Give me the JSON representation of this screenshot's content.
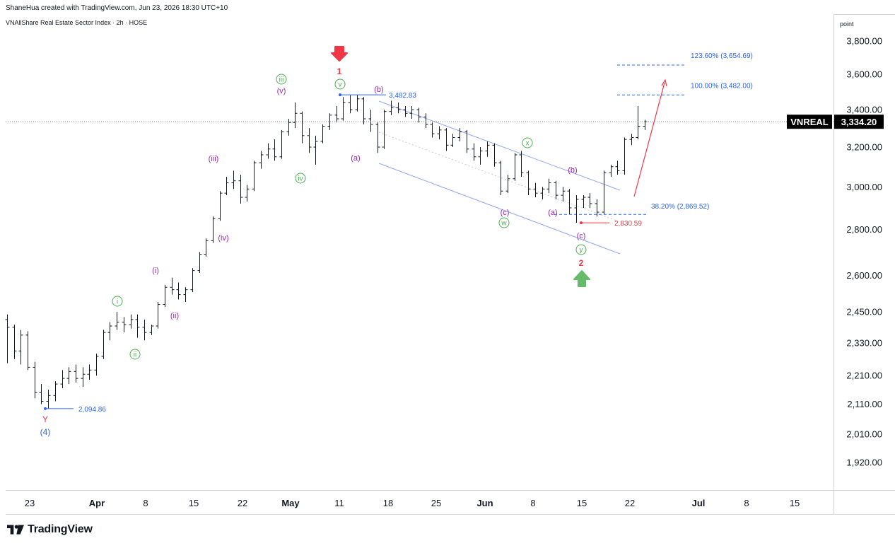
{
  "header": {
    "credit": "ShaneHua created with TradingView.com, Jun 23, 2026 18:30 UTC+10",
    "symbol_line": "VNAllShare Real Estate Sector Index · 2h · HOSE"
  },
  "price_axis": {
    "unit": "point",
    "ticks": [
      "3,800.00",
      "3,600.00",
      "3,400.00",
      "3,200.00",
      "3,000.00",
      "2,800.00",
      "2,600.00",
      "2,450.00",
      "2,330.00",
      "2,210.00",
      "2,110.00",
      "2,010.00",
      "1,920.00"
    ],
    "tick_values": [
      3800,
      3600,
      3400,
      3200,
      3000,
      2800,
      2600,
      2450,
      2330,
      2210,
      2110,
      2010,
      1920
    ]
  },
  "time_axis": {
    "ticks": [
      "23",
      "Apr",
      "8",
      "15",
      "22",
      "May",
      "11",
      "18",
      "25",
      "Jun",
      "8",
      "15",
      "22",
      "Jul",
      "8",
      "15"
    ],
    "bold": [
      "Apr",
      "May",
      "Jun",
      "Jul"
    ]
  },
  "last_price": {
    "symbol": "VNREAL",
    "value": "3,334.20",
    "price": 3334.2
  },
  "chart_data": {
    "type": "bar",
    "title": "VNAllShare Real Estate Sector Index",
    "scale": "log",
    "ylim": [
      1850,
      3900
    ],
    "x_range": [
      "Mar 20",
      "Jul 20"
    ],
    "grid": false,
    "ohlc_note": "2h OHLC bars, approximate",
    "ohlc": [
      [
        2420,
        2440,
        2255,
        2390
      ],
      [
        2390,
        2400,
        2270,
        2300
      ],
      [
        2300,
        2380,
        2250,
        2360
      ],
      [
        2360,
        2375,
        2230,
        2240
      ],
      [
        2240,
        2260,
        2130,
        2150
      ],
      [
        2150,
        2180,
        2110,
        2120
      ],
      [
        2120,
        2160,
        2095,
        2140
      ],
      [
        2140,
        2190,
        2120,
        2180
      ],
      [
        2180,
        2230,
        2165,
        2200
      ],
      [
        2200,
        2240,
        2180,
        2225
      ],
      [
        2225,
        2250,
        2185,
        2200
      ],
      [
        2200,
        2240,
        2170,
        2215
      ],
      [
        2215,
        2250,
        2195,
        2230
      ],
      [
        2230,
        2290,
        2210,
        2280
      ],
      [
        2280,
        2380,
        2270,
        2370
      ],
      [
        2370,
        2410,
        2340,
        2395
      ],
      [
        2395,
        2450,
        2380,
        2410
      ],
      [
        2410,
        2430,
        2370,
        2400
      ],
      [
        2400,
        2440,
        2385,
        2420
      ],
      [
        2420,
        2440,
        2350,
        2390
      ],
      [
        2390,
        2420,
        2340,
        2370
      ],
      [
        2370,
        2400,
        2360,
        2395
      ],
      [
        2395,
        2490,
        2385,
        2480
      ],
      [
        2480,
        2560,
        2470,
        2550
      ],
      [
        2550,
        2590,
        2520,
        2540
      ],
      [
        2540,
        2570,
        2500,
        2520
      ],
      [
        2520,
        2550,
        2490,
        2540
      ],
      [
        2540,
        2630,
        2530,
        2620
      ],
      [
        2620,
        2700,
        2610,
        2690
      ],
      [
        2690,
        2760,
        2680,
        2750
      ],
      [
        2750,
        2860,
        2740,
        2850
      ],
      [
        2850,
        2980,
        2840,
        2970
      ],
      [
        2970,
        3050,
        2960,
        3020
      ],
      [
        3020,
        3080,
        2990,
        3030
      ],
      [
        3030,
        3060,
        2920,
        2950
      ],
      [
        2950,
        3010,
        2930,
        2990
      ],
      [
        2990,
        3130,
        2980,
        3120
      ],
      [
        3120,
        3180,
        3090,
        3160
      ],
      [
        3160,
        3220,
        3140,
        3190
      ],
      [
        3190,
        3240,
        3130,
        3150
      ],
      [
        3150,
        3290,
        3140,
        3280
      ],
      [
        3280,
        3350,
        3260,
        3330
      ],
      [
        3330,
        3440,
        3300,
        3380
      ],
      [
        3380,
        3390,
        3220,
        3260
      ],
      [
        3260,
        3300,
        3170,
        3200
      ],
      [
        3200,
        3260,
        3110,
        3230
      ],
      [
        3230,
        3320,
        3220,
        3310
      ],
      [
        3310,
        3380,
        3290,
        3370
      ],
      [
        3370,
        3420,
        3330,
        3350
      ],
      [
        3350,
        3470,
        3340,
        3440
      ],
      [
        3440,
        3480,
        3380,
        3400
      ],
      [
        3400,
        3483,
        3390,
        3460
      ],
      [
        3460,
        3470,
        3320,
        3350
      ],
      [
        3350,
        3400,
        3280,
        3320
      ],
      [
        3320,
        3330,
        3170,
        3200
      ],
      [
        3200,
        3400,
        3190,
        3390
      ],
      [
        3390,
        3450,
        3370,
        3410
      ],
      [
        3410,
        3440,
        3380,
        3400
      ],
      [
        3400,
        3420,
        3360,
        3380
      ],
      [
        3380,
        3420,
        3350,
        3400
      ],
      [
        3400,
        3410,
        3330,
        3360
      ],
      [
        3360,
        3380,
        3300,
        3320
      ],
      [
        3320,
        3330,
        3250,
        3270
      ],
      [
        3270,
        3310,
        3240,
        3290
      ],
      [
        3290,
        3300,
        3180,
        3210
      ],
      [
        3210,
        3270,
        3200,
        3250
      ],
      [
        3250,
        3300,
        3230,
        3280
      ],
      [
        3280,
        3290,
        3170,
        3190
      ],
      [
        3190,
        3220,
        3130,
        3150
      ],
      [
        3150,
        3200,
        3110,
        3180
      ],
      [
        3180,
        3230,
        3150,
        3210
      ],
      [
        3210,
        3220,
        3100,
        3120
      ],
      [
        3120,
        3130,
        2960,
        2980
      ],
      [
        2980,
        3060,
        2970,
        3040
      ],
      [
        3040,
        3170,
        3030,
        3160
      ],
      [
        3160,
        3180,
        3050,
        3070
      ],
      [
        3070,
        3080,
        2960,
        2990
      ],
      [
        2990,
        3020,
        2950,
        2970
      ],
      [
        2970,
        3000,
        2940,
        2990
      ],
      [
        2990,
        3040,
        2970,
        3020
      ],
      [
        3020,
        3030,
        2940,
        2960
      ],
      [
        2960,
        3000,
        2930,
        2980
      ],
      [
        2980,
        2990,
        2870,
        2900
      ],
      [
        2900,
        2960,
        2831,
        2940
      ],
      [
        2940,
        2960,
        2900,
        2950
      ],
      [
        2950,
        2970,
        2900,
        2920
      ],
      [
        2920,
        2940,
        2860,
        2880
      ],
      [
        2880,
        3080,
        2870,
        3070
      ],
      [
        3070,
        3110,
        3050,
        3100
      ],
      [
        3100,
        3130,
        3060,
        3080
      ],
      [
        3080,
        3250,
        3060,
        3240
      ],
      [
        3240,
        3270,
        3210,
        3250
      ],
      [
        3250,
        3420,
        3240,
        3310
      ],
      [
        3310,
        3345,
        3290,
        3334.2
      ]
    ]
  },
  "fib_levels": [
    {
      "label": "123.60% (3,654.69)",
      "price": 3654.69
    },
    {
      "label": "100.00% (3,482.00)",
      "price": 3482
    },
    {
      "label": "38.20% (2,869.52)",
      "price": 2869.52
    }
  ],
  "price_marks": [
    {
      "label": "3,482.83",
      "price": 3482.83
    },
    {
      "label": "2,094.86",
      "price": 2094.86
    },
    {
      "label": "2,830.59",
      "price": 2830.59
    }
  ],
  "wave_labels": {
    "major": [
      "Y",
      "(4)",
      "1",
      "2"
    ],
    "minor_circled": [
      "i",
      "ii",
      "iii",
      "iv",
      "v",
      "w",
      "x",
      "y"
    ],
    "sub": [
      "(i)",
      "(ii)",
      "(iii)",
      "(iv)",
      "(v)",
      "(a)",
      "(b)",
      "(c)",
      "(b)",
      "(c)",
      "(a)",
      "(b)",
      "(c)"
    ]
  },
  "colors": {
    "bar": "#131722",
    "blue": "#2962ff",
    "channel": "#90a8f0",
    "red": "#f23645",
    "green": "#4caf50",
    "green_arrow": "#66bb6a",
    "purple": "#9c27b0",
    "axis_line": "#d1d4dc",
    "label_bg": "#000000"
  },
  "icons": [
    "tradingview-logo-icon",
    "down-arrow-icon",
    "up-arrow-icon"
  ],
  "brand": "TradingView"
}
